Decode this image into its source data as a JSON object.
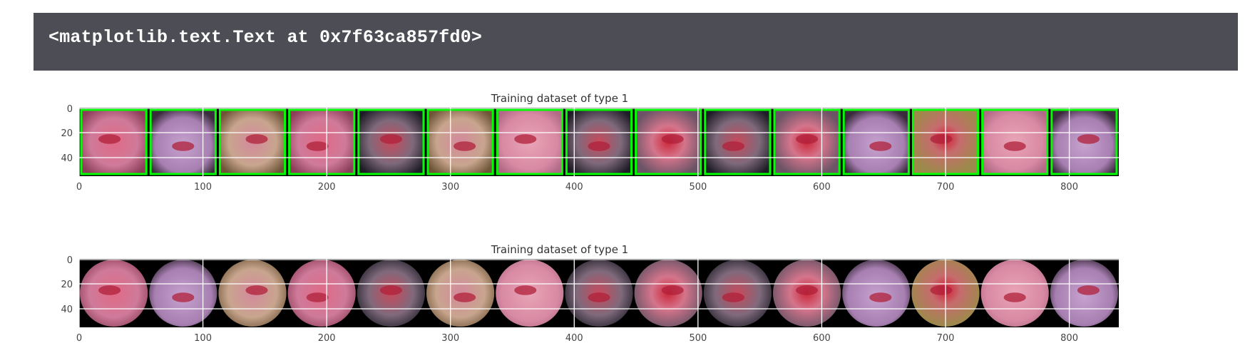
{
  "output": {
    "text": "<matplotlib.text.Text at 0x7f63ca857fd0>"
  },
  "colors": {
    "output_background": "#4c4d55",
    "bbox_green": "#00ff00",
    "grid": "#ffffff",
    "image_background": "#000000"
  },
  "subplots": [
    {
      "title": "Training dataset of type 1",
      "x_ticks": [
        "0",
        "100",
        "200",
        "300",
        "400",
        "500",
        "600",
        "700",
        "800"
      ],
      "y_ticks": [
        "0",
        "20",
        "40"
      ],
      "has_bounding_boxes": true,
      "tile_count": 15
    },
    {
      "title": "Training dataset of type 1",
      "x_ticks": [
        "0",
        "100",
        "200",
        "300",
        "400",
        "500",
        "600",
        "700",
        "800"
      ],
      "y_ticks": [
        "0",
        "20",
        "40"
      ],
      "has_bounding_boxes": false,
      "tile_count": 15
    }
  ]
}
